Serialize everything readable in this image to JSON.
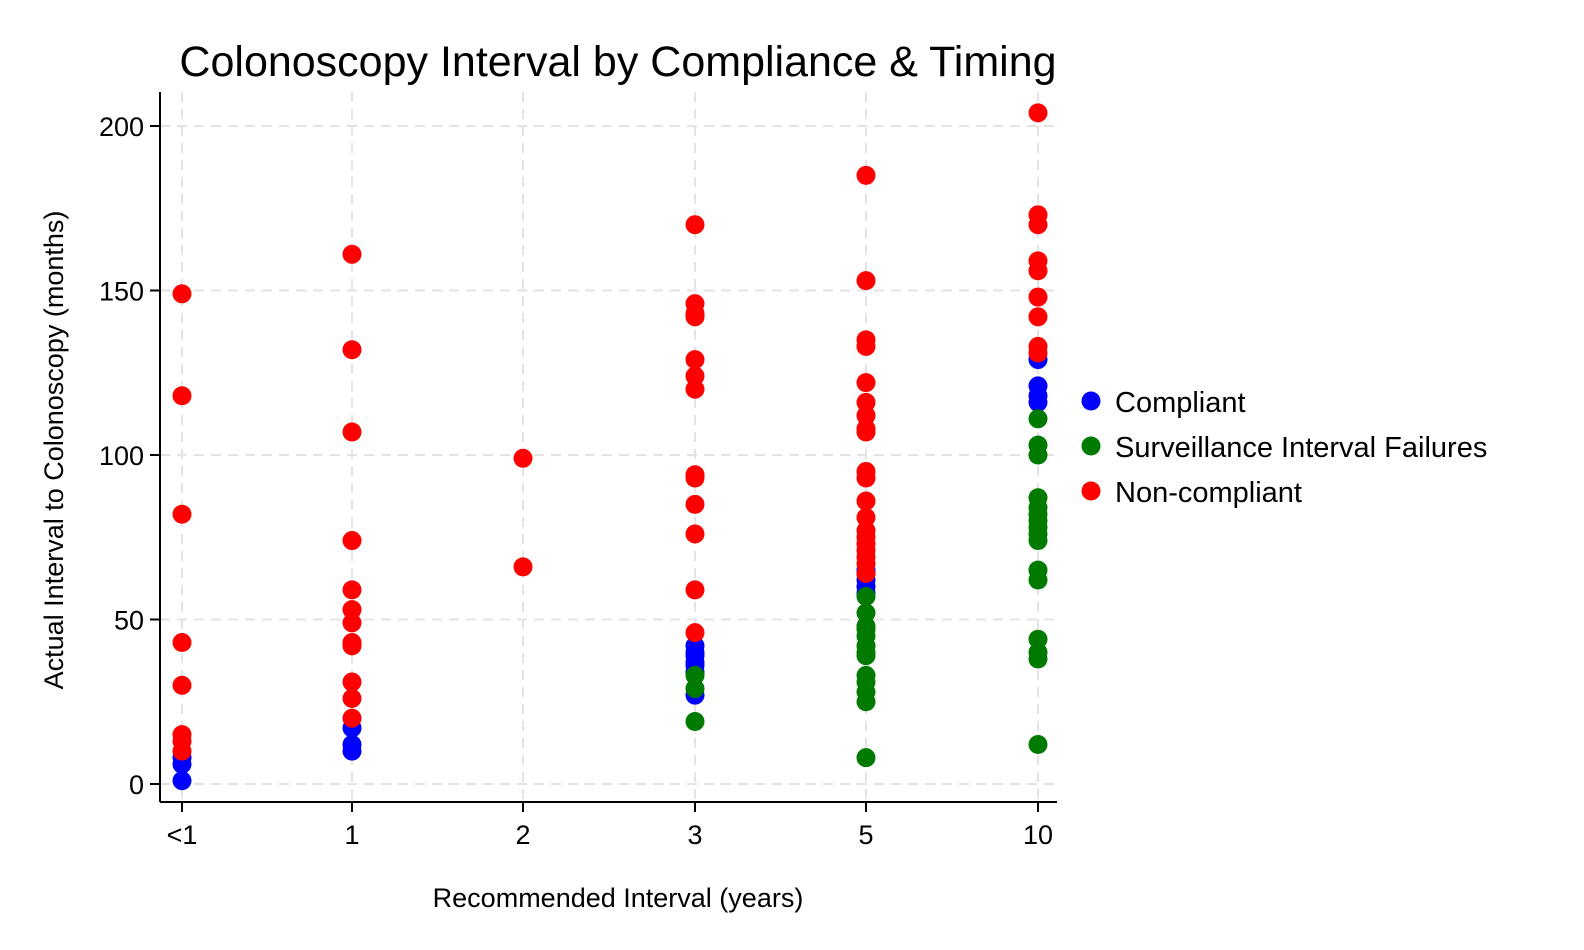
{
  "chart_data": {
    "type": "scatter",
    "title": "Colonoscopy Interval by Compliance & Timing",
    "xlabel": "Recommended Interval (years)",
    "ylabel": "Actual Interval to Colonoscopy (months)",
    "x_categories": [
      "<1",
      "1",
      "2",
      "3",
      "5",
      "10"
    ],
    "yticks": [
      0,
      50,
      100,
      150,
      200
    ],
    "ylim": [
      -5,
      210
    ],
    "grid": true,
    "legend_position": "right",
    "series": [
      {
        "name": "Compliant",
        "color": "#0000ff",
        "points": [
          [
            "<1",
            1
          ],
          [
            "<1",
            6
          ],
          [
            "<1",
            8
          ],
          [
            "1",
            10
          ],
          [
            "1",
            12
          ],
          [
            "1",
            17
          ],
          [
            "3",
            27
          ],
          [
            "3",
            34
          ],
          [
            "3",
            36
          ],
          [
            "3",
            37
          ],
          [
            "3",
            39
          ],
          [
            "3",
            40
          ],
          [
            "3",
            42
          ],
          [
            "5",
            58
          ],
          [
            "5",
            60
          ],
          [
            "5",
            62
          ],
          [
            "5",
            64
          ],
          [
            "5",
            65
          ],
          [
            "10",
            116
          ],
          [
            "10",
            118
          ],
          [
            "10",
            121
          ],
          [
            "10",
            129
          ]
        ]
      },
      {
        "name": "Surveillance Interval Failures",
        "color": "#007a00",
        "points": [
          [
            "3",
            19
          ],
          [
            "3",
            29
          ],
          [
            "3",
            33
          ],
          [
            "5",
            8
          ],
          [
            "5",
            25
          ],
          [
            "5",
            28
          ],
          [
            "5",
            31
          ],
          [
            "5",
            33
          ],
          [
            "5",
            39
          ],
          [
            "5",
            40
          ],
          [
            "5",
            42
          ],
          [
            "5",
            45
          ],
          [
            "5",
            47
          ],
          [
            "5",
            48
          ],
          [
            "5",
            52
          ],
          [
            "5",
            57
          ],
          [
            "10",
            12
          ],
          [
            "10",
            38
          ],
          [
            "10",
            40
          ],
          [
            "10",
            44
          ],
          [
            "10",
            62
          ],
          [
            "10",
            65
          ],
          [
            "10",
            74
          ],
          [
            "10",
            76
          ],
          [
            "10",
            78
          ],
          [
            "10",
            80
          ],
          [
            "10",
            82
          ],
          [
            "10",
            84
          ],
          [
            "10",
            87
          ],
          [
            "10",
            100
          ],
          [
            "10",
            103
          ],
          [
            "10",
            111
          ]
        ]
      },
      {
        "name": "Non-compliant",
        "color": "#ff0000",
        "points": [
          [
            "<1",
            10
          ],
          [
            "<1",
            13
          ],
          [
            "<1",
            15
          ],
          [
            "<1",
            30
          ],
          [
            "<1",
            43
          ],
          [
            "<1",
            82
          ],
          [
            "<1",
            118
          ],
          [
            "<1",
            149
          ],
          [
            "1",
            20
          ],
          [
            "1",
            26
          ],
          [
            "1",
            31
          ],
          [
            "1",
            42
          ],
          [
            "1",
            43
          ],
          [
            "1",
            49
          ],
          [
            "1",
            53
          ],
          [
            "1",
            59
          ],
          [
            "1",
            74
          ],
          [
            "1",
            107
          ],
          [
            "1",
            132
          ],
          [
            "1",
            161
          ],
          [
            "2",
            66
          ],
          [
            "2",
            99
          ],
          [
            "3",
            46
          ],
          [
            "3",
            59
          ],
          [
            "3",
            76
          ],
          [
            "3",
            85
          ],
          [
            "3",
            93
          ],
          [
            "3",
            94
          ],
          [
            "3",
            120
          ],
          [
            "3",
            124
          ],
          [
            "3",
            129
          ],
          [
            "3",
            142
          ],
          [
            "3",
            143
          ],
          [
            "3",
            146
          ],
          [
            "3",
            170
          ],
          [
            "5",
            64
          ],
          [
            "5",
            67
          ],
          [
            "5",
            69
          ],
          [
            "5",
            71
          ],
          [
            "5",
            73
          ],
          [
            "5",
            75
          ],
          [
            "5",
            77
          ],
          [
            "5",
            81
          ],
          [
            "5",
            86
          ],
          [
            "5",
            93
          ],
          [
            "5",
            95
          ],
          [
            "5",
            107
          ],
          [
            "5",
            108
          ],
          [
            "5",
            112
          ],
          [
            "5",
            116
          ],
          [
            "5",
            122
          ],
          [
            "5",
            133
          ],
          [
            "5",
            135
          ],
          [
            "5",
            153
          ],
          [
            "5",
            185
          ],
          [
            "10",
            131
          ],
          [
            "10",
            133
          ],
          [
            "10",
            142
          ],
          [
            "10",
            148
          ],
          [
            "10",
            156
          ],
          [
            "10",
            159
          ],
          [
            "10",
            170
          ],
          [
            "10",
            173
          ],
          [
            "10",
            204
          ]
        ]
      }
    ]
  }
}
